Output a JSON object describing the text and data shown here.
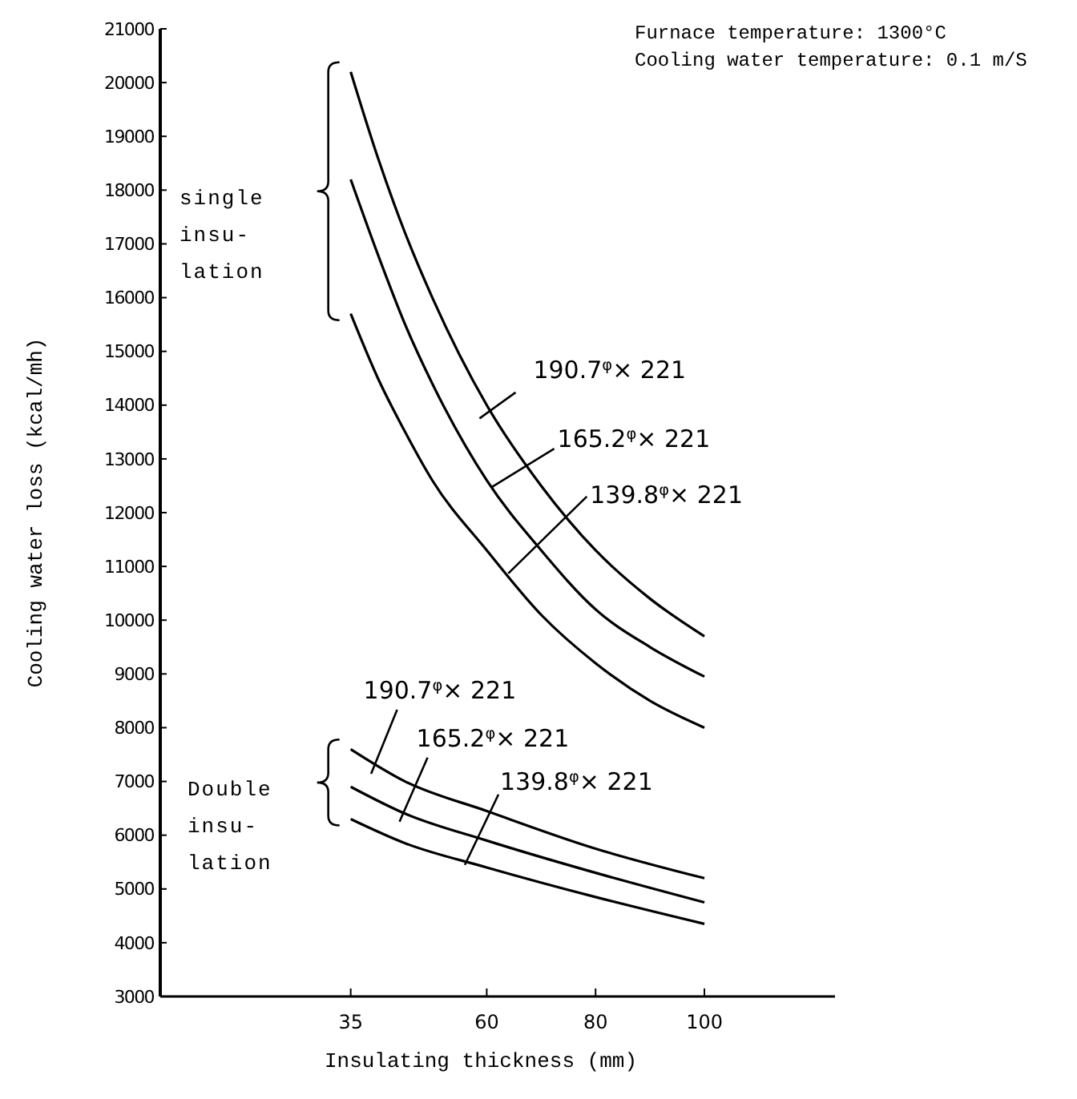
{
  "chart_data": {
    "type": "line",
    "xlabel": "Insulating thickness (mm)",
    "ylabel": "Cooling water loss (kcal/mh)",
    "xlim": [
      0,
      124
    ],
    "xticks": [
      35,
      60,
      80,
      100
    ],
    "ylim": [
      3000,
      21000
    ],
    "yticks": [
      3000,
      4000,
      5000,
      6000,
      7000,
      8000,
      9000,
      10000,
      11000,
      12000,
      13000,
      14000,
      15000,
      16000,
      17000,
      18000,
      19000,
      20000,
      21000
    ],
    "grid": false,
    "marker": "none",
    "line_style": "solid",
    "series": [
      {
        "color": "#000000",
        "x": [
          35,
          40,
          45,
          50,
          60,
          70,
          80,
          90,
          100
        ],
        "values": [
          20200,
          18600,
          17200,
          16000,
          14000,
          12500,
          11300,
          10400,
          9700
        ]
      },
      {
        "color": "#000000",
        "x": [
          35,
          40,
          45,
          50,
          60,
          70,
          80,
          90,
          100
        ],
        "values": [
          18200,
          16800,
          15500,
          14400,
          12600,
          11300,
          10200,
          9500,
          8950
        ]
      },
      {
        "color": "#000000",
        "x": [
          35,
          40,
          45,
          50,
          60,
          70,
          80,
          90,
          100
        ],
        "values": [
          15700,
          14500,
          13500,
          12600,
          11300,
          10100,
          9200,
          8500,
          8000
        ]
      },
      {
        "color": "#000000",
        "x": [
          35,
          45,
          60,
          80,
          100
        ],
        "values": [
          7600,
          7000,
          6450,
          5750,
          5200
        ]
      },
      {
        "color": "#000000",
        "x": [
          35,
          45,
          60,
          80,
          100
        ],
        "values": [
          6900,
          6400,
          5900,
          5300,
          4750
        ]
      },
      {
        "color": "#000000",
        "x": [
          35,
          45,
          60,
          80,
          100
        ],
        "values": [
          6300,
          5850,
          5400,
          4850,
          4350
        ]
      }
    ],
    "annotations": [
      "Furnace temperature:  1300°C",
      "Cooling water temperature:  0.1 m/S",
      "single\ninsu-\nlation",
      "Double\ninsu-\nlation",
      {
        "text": "190.7$^{φ}$× 221",
        "x": 60,
        "y": 13850
      },
      {
        "text": "165.2$^{φ}$× 221",
        "x": 66.8,
        "y": 12980
      },
      {
        "text": "139.8$^{φ}$× 221",
        "x": 72.2,
        "y": 12240
      },
      {
        "text": "190.7$^{φ}$× 221",
        "x": 39.7,
        "y": 7380
      },
      {
        "text": "165.2$^{φ}$× 221",
        "x": 45,
        "y": 6490
      },
      {
        "text": "139.8$^{φ}$× 221",
        "x": 59.8,
        "y": 6460
      }
    ]
  }
}
